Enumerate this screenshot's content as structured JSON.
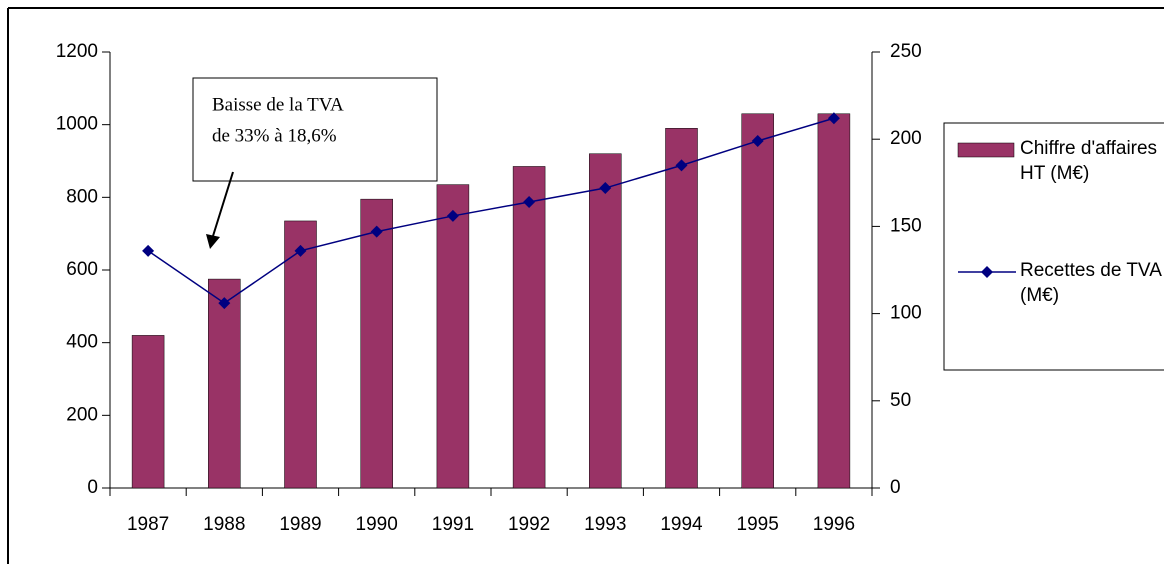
{
  "chart_data": {
    "type": "bar",
    "categories": [
      "1987",
      "1988",
      "1989",
      "1990",
      "1991",
      "1992",
      "1993",
      "1994",
      "1995",
      "1996"
    ],
    "series": [
      {
        "name": "Chiffre d'affaires HT (M€)",
        "color": "#993366",
        "values": [
          420,
          575,
          735,
          795,
          835,
          885,
          920,
          990,
          1030,
          1030
        ]
      },
      {
        "name": "Recettes de TVA (M€)",
        "color": "#000080",
        "axis": "y2",
        "type": "line",
        "values": [
          136,
          106,
          136,
          147,
          156,
          164,
          172,
          185,
          199,
          212
        ]
      }
    ],
    "ylim": [
      0,
      1200
    ],
    "yticks": [
      0,
      200,
      400,
      600,
      800,
      1000,
      1200
    ],
    "y2lim": [
      0,
      250
    ],
    "y2ticks": [
      0,
      50,
      100,
      150,
      200,
      250
    ],
    "annotation": [
      "Baisse de la TVA",
      "de 33% à 18,6%"
    ],
    "legend": "right"
  }
}
